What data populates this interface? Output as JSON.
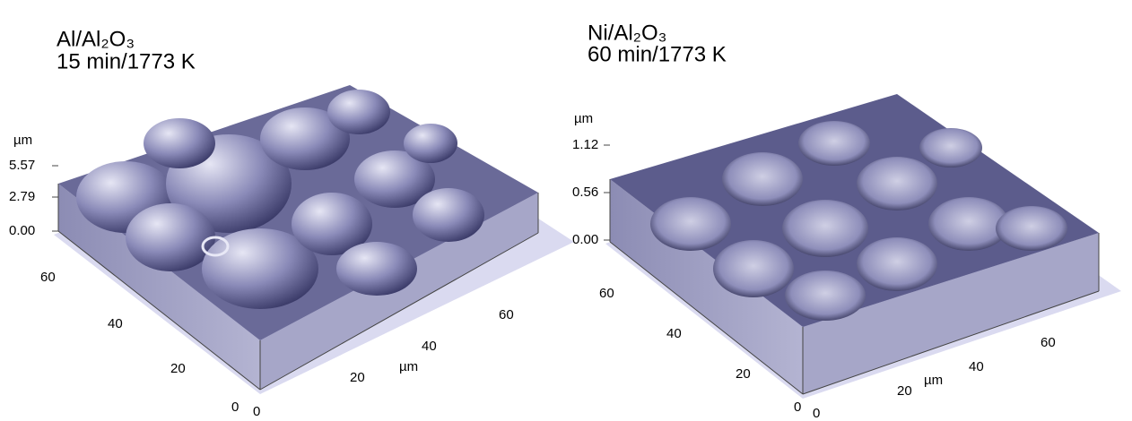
{
  "panels": [
    {
      "title": [
        "Al/Al₂O₃",
        "15 min/1773 K"
      ],
      "z_unit": "µm",
      "z_ticks": [
        "5.57",
        "2.79",
        "0.00"
      ],
      "y_ticks": [
        "60",
        "40",
        "20",
        "0"
      ],
      "x_ticks": [
        "0",
        "20",
        "40",
        "60"
      ],
      "x_unit": "µm"
    },
    {
      "title": [
        "Ni/Al₂O₃",
        "60 min/1773 K"
      ],
      "z_unit": "µm",
      "z_ticks": [
        "1.12",
        "0.56",
        "0.00"
      ],
      "y_ticks": [
        "60",
        "40",
        "20",
        "0"
      ],
      "x_ticks": [
        "0",
        "20",
        "40",
        "60"
      ],
      "x_unit": "µm"
    }
  ]
}
